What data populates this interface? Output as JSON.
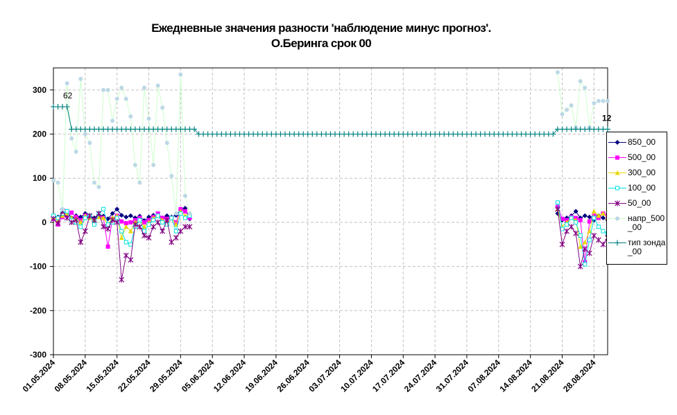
{
  "chart_data": {
    "type": "line",
    "title": [
      "Ежедневные значения разности 'наблюдение минус прогноз'.",
      "О.Беринга    срок 00"
    ],
    "x": [
      "01.05.2024",
      "02.05.2024",
      "03.05.2024",
      "04.05.2024",
      "05.05.2024",
      "06.05.2024",
      "07.05.2024",
      "08.05.2024",
      "09.05.2024",
      "10.05.2024",
      "11.05.2024",
      "12.05.2024",
      "13.05.2024",
      "14.05.2024",
      "15.05.2024",
      "16.05.2024",
      "17.05.2024",
      "18.05.2024",
      "19.05.2024",
      "20.05.2024",
      "21.05.2024",
      "22.05.2024",
      "23.05.2024",
      "24.05.2024",
      "25.05.2024",
      "26.05.2024",
      "27.05.2024",
      "28.05.2024",
      "29.05.2024",
      "30.05.2024",
      "31.05.2024",
      "01.06.2024",
      "02.06.2024",
      "03.06.2024",
      "04.06.2024",
      "05.06.2024",
      "06.06.2024",
      "07.06.2024",
      "08.06.2024",
      "09.06.2024",
      "10.06.2024",
      "11.06.2024",
      "12.06.2024",
      "13.06.2024",
      "14.06.2024",
      "15.06.2024",
      "16.06.2024",
      "17.06.2024",
      "18.06.2024",
      "19.06.2024",
      "20.06.2024",
      "21.06.2024",
      "22.06.2024",
      "23.06.2024",
      "24.06.2024",
      "25.06.2024",
      "26.06.2024",
      "27.06.2024",
      "28.06.2024",
      "29.06.2024",
      "30.06.2024",
      "01.07.2024",
      "02.07.2024",
      "03.07.2024",
      "04.07.2024",
      "05.07.2024",
      "06.07.2024",
      "07.07.2024",
      "08.07.2024",
      "09.07.2024",
      "10.07.2024",
      "11.07.2024",
      "12.07.2024",
      "13.07.2024",
      "14.07.2024",
      "15.07.2024",
      "16.07.2024",
      "17.07.2024",
      "18.07.2024",
      "19.07.2024",
      "20.07.2024",
      "21.07.2024",
      "22.07.2024",
      "23.07.2024",
      "24.07.2024",
      "25.07.2024",
      "26.07.2024",
      "27.07.2024",
      "28.07.2024",
      "29.07.2024",
      "30.07.2024",
      "31.07.2024",
      "01.08.2024",
      "02.08.2024",
      "03.08.2024",
      "04.08.2024",
      "05.08.2024",
      "06.08.2024",
      "07.08.2024",
      "08.08.2024",
      "09.08.2024",
      "10.08.2024",
      "11.08.2024",
      "12.08.2024",
      "13.08.2024",
      "14.08.2024",
      "15.08.2024",
      "16.08.2024",
      "17.08.2024",
      "18.08.2024",
      "19.08.2024",
      "20.08.2024",
      "21.08.2024",
      "22.08.2024",
      "23.08.2024",
      "24.08.2024",
      "25.08.2024",
      "26.08.2024",
      "27.08.2024",
      "28.08.2024",
      "29.08.2024",
      "30.08.2024",
      "31.08.2024"
    ],
    "xlim": [
      "01.05.2024",
      "31.08.2024"
    ],
    "xticks": [
      "01.05.2024",
      "08.05.2024",
      "15.05.2024",
      "22.05.2024",
      "29.05.2024",
      "05.06.2024",
      "12.06.2024",
      "19.06.2024",
      "26.06.2024",
      "03.07.2024",
      "10.07.2024",
      "17.07.2024",
      "24.07.2024",
      "31.07.2024",
      "07.08.2024",
      "14.08.2024",
      "21.08.2024",
      "28.08.2024"
    ],
    "ylim": [
      -300,
      350
    ],
    "yticks": [
      -300,
      -200,
      -100,
      0,
      100,
      200,
      300
    ],
    "grid": true,
    "series": [
      {
        "name": "850_00",
        "color": "#000080",
        "marker": "diamond",
        "values": [
          10,
          12,
          20,
          25,
          10,
          15,
          12,
          20,
          15,
          10,
          18,
          14,
          8,
          20,
          30,
          16,
          12,
          15,
          10,
          14,
          4,
          12,
          16,
          15,
          10,
          15,
          12,
          16,
          28,
          32,
          8,
          null,
          null,
          null,
          null,
          null,
          null,
          null,
          null,
          null,
          null,
          null,
          null,
          null,
          null,
          null,
          null,
          null,
          null,
          null,
          null,
          null,
          null,
          null,
          null,
          null,
          null,
          null,
          null,
          null,
          null,
          null,
          null,
          null,
          null,
          null,
          null,
          null,
          null,
          null,
          null,
          null,
          null,
          null,
          null,
          null,
          null,
          null,
          null,
          null,
          null,
          null,
          null,
          null,
          null,
          null,
          null,
          null,
          null,
          null,
          null,
          null,
          null,
          null,
          null,
          null,
          null,
          null,
          null,
          null,
          null,
          null,
          null,
          null,
          null,
          null,
          null,
          null,
          null,
          null,
          null,
          20,
          5,
          10,
          15,
          25,
          10,
          15,
          12,
          5,
          15,
          10,
          5
        ]
      },
      {
        "name": "500_00",
        "color": "#ff00ff",
        "marker": "square",
        "values": [
          8,
          -5,
          12,
          15,
          22,
          12,
          5,
          15,
          12,
          5,
          15,
          10,
          -55,
          8,
          15,
          2,
          -2,
          0,
          5,
          10,
          0,
          5,
          12,
          20,
          10,
          8,
          10,
          0,
          30,
          25,
          10,
          null,
          null,
          null,
          null,
          null,
          null,
          null,
          null,
          null,
          null,
          null,
          null,
          null,
          null,
          null,
          null,
          null,
          null,
          null,
          null,
          null,
          null,
          null,
          null,
          null,
          null,
          null,
          null,
          null,
          null,
          null,
          null,
          null,
          null,
          null,
          null,
          null,
          null,
          null,
          null,
          null,
          null,
          null,
          null,
          null,
          null,
          null,
          null,
          null,
          null,
          null,
          null,
          null,
          null,
          null,
          null,
          null,
          null,
          null,
          null,
          null,
          null,
          null,
          null,
          null,
          null,
          null,
          null,
          null,
          null,
          null,
          null,
          null,
          null,
          null,
          null,
          null,
          null,
          null,
          null,
          35,
          8,
          5,
          12,
          10,
          5,
          -90,
          2,
          15,
          10,
          20,
          15
        ]
      },
      {
        "name": "300_00",
        "color": "#e8d800",
        "marker": "triangle",
        "values": [
          12,
          5,
          15,
          20,
          10,
          8,
          0,
          15,
          10,
          5,
          12,
          10,
          -5,
          10,
          15,
          -35,
          -10,
          -20,
          0,
          5,
          -10,
          0,
          10,
          15,
          5,
          0,
          10,
          -5,
          25,
          15,
          20,
          null,
          null,
          null,
          null,
          null,
          null,
          null,
          null,
          null,
          null,
          null,
          null,
          null,
          null,
          null,
          null,
          null,
          null,
          null,
          null,
          null,
          null,
          null,
          null,
          null,
          null,
          null,
          null,
          null,
          null,
          null,
          null,
          null,
          null,
          null,
          null,
          null,
          null,
          null,
          null,
          null,
          null,
          null,
          null,
          null,
          null,
          null,
          null,
          null,
          null,
          null,
          null,
          null,
          null,
          null,
          null,
          null,
          null,
          null,
          null,
          null,
          null,
          null,
          null,
          null,
          null,
          null,
          null,
          null,
          null,
          null,
          null,
          null,
          null,
          null,
          null,
          null,
          null,
          null,
          null,
          30,
          -10,
          0,
          10,
          5,
          -55,
          -45,
          -20,
          25,
          15,
          20,
          10
        ]
      },
      {
        "name": "100_00",
        "color": "#00e0e0",
        "marker": "open-square",
        "values": [
          15,
          10,
          20,
          25,
          5,
          0,
          -10,
          10,
          15,
          -5,
          20,
          30,
          -5,
          0,
          10,
          -20,
          -45,
          -50,
          -10,
          5,
          -20,
          -5,
          5,
          15,
          0,
          -5,
          10,
          -20,
          20,
          10,
          15,
          null,
          null,
          null,
          null,
          null,
          null,
          null,
          null,
          null,
          null,
          null,
          null,
          null,
          null,
          null,
          null,
          null,
          null,
          null,
          null,
          null,
          null,
          null,
          null,
          null,
          null,
          null,
          null,
          null,
          null,
          null,
          null,
          null,
          null,
          null,
          null,
          null,
          null,
          null,
          null,
          null,
          null,
          null,
          null,
          null,
          null,
          null,
          null,
          null,
          null,
          null,
          null,
          null,
          null,
          null,
          null,
          null,
          null,
          null,
          null,
          null,
          null,
          null,
          null,
          null,
          null,
          null,
          null,
          null,
          null,
          null,
          null,
          null,
          null,
          null,
          null,
          null,
          null,
          null,
          null,
          45,
          -15,
          -5,
          10,
          0,
          -30,
          -95,
          -40,
          10,
          -10,
          -20,
          -25
        ]
      },
      {
        "name": "50_00",
        "color": "#800080",
        "marker": "star",
        "values": [
          8,
          -2,
          25,
          10,
          0,
          5,
          -45,
          -20,
          15,
          5,
          20,
          -10,
          -15,
          5,
          0,
          -130,
          -75,
          -85,
          -5,
          -10,
          -30,
          -35,
          -10,
          0,
          -20,
          5,
          -45,
          -35,
          -20,
          -10,
          -10,
          null,
          null,
          null,
          null,
          null,
          null,
          null,
          null,
          null,
          null,
          null,
          null,
          null,
          null,
          null,
          null,
          null,
          null,
          null,
          null,
          null,
          null,
          null,
          null,
          null,
          null,
          null,
          null,
          null,
          null,
          null,
          null,
          null,
          null,
          null,
          null,
          null,
          null,
          null,
          null,
          null,
          null,
          null,
          null,
          null,
          null,
          null,
          null,
          null,
          null,
          null,
          null,
          null,
          null,
          null,
          null,
          null,
          null,
          null,
          null,
          null,
          null,
          null,
          null,
          null,
          null,
          null,
          null,
          null,
          null,
          null,
          null,
          null,
          null,
          null,
          null,
          null,
          null,
          null,
          null,
          30,
          -50,
          -20,
          -10,
          -25,
          -100,
          -60,
          -70,
          -30,
          -40,
          -50,
          -35
        ]
      },
      {
        "name": "напр_500_00",
        "color": "#ccffcc",
        "marker_color": "#bcd8e6",
        "marker": "circle",
        "values": [
          95,
          90,
          30,
          315,
          190,
          160,
          325,
          200,
          180,
          90,
          80,
          300,
          300,
          230,
          280,
          305,
          280,
          240,
          130,
          90,
          305,
          235,
          130,
          310,
          260,
          180,
          105,
          20,
          335,
          60,
          20,
          null,
          null,
          null,
          null,
          null,
          null,
          null,
          null,
          null,
          null,
          null,
          null,
          null,
          null,
          null,
          null,
          null,
          null,
          null,
          null,
          null,
          null,
          null,
          null,
          null,
          null,
          null,
          null,
          null,
          null,
          null,
          null,
          null,
          null,
          null,
          null,
          null,
          null,
          null,
          null,
          null,
          null,
          null,
          null,
          null,
          null,
          null,
          null,
          null,
          null,
          null,
          null,
          null,
          null,
          null,
          null,
          null,
          null,
          null,
          null,
          null,
          null,
          null,
          null,
          null,
          null,
          null,
          null,
          null,
          null,
          null,
          null,
          null,
          null,
          null,
          null,
          null,
          null,
          null,
          null,
          340,
          245,
          255,
          265,
          215,
          320,
          305,
          215,
          270,
          275,
          275,
          275
        ]
      },
      {
        "name": "тип зонда_00",
        "color": "#008080",
        "marker": "plus",
        "values": [
          262,
          262,
          262,
          262,
          211,
          211,
          211,
          211,
          211,
          211,
          211,
          211,
          211,
          211,
          211,
          211,
          211,
          211,
          211,
          211,
          211,
          211,
          211,
          211,
          211,
          211,
          211,
          211,
          211,
          211,
          211,
          211,
          200,
          200,
          200,
          200,
          200,
          200,
          200,
          200,
          200,
          200,
          200,
          200,
          200,
          200,
          200,
          200,
          200,
          200,
          200,
          200,
          200,
          200,
          200,
          200,
          200,
          200,
          200,
          200,
          200,
          200,
          200,
          200,
          200,
          200,
          200,
          200,
          200,
          200,
          200,
          200,
          200,
          200,
          200,
          200,
          200,
          200,
          200,
          200,
          200,
          200,
          200,
          200,
          200,
          200,
          200,
          200,
          200,
          200,
          200,
          200,
          200,
          200,
          200,
          200,
          200,
          200,
          200,
          200,
          200,
          200,
          200,
          200,
          200,
          200,
          200,
          200,
          200,
          200,
          200,
          211,
          211,
          211,
          211,
          211,
          211,
          211,
          211,
          211,
          211,
          211,
          211
        ]
      }
    ],
    "annotations": [
      "62",
      "12"
    ]
  }
}
